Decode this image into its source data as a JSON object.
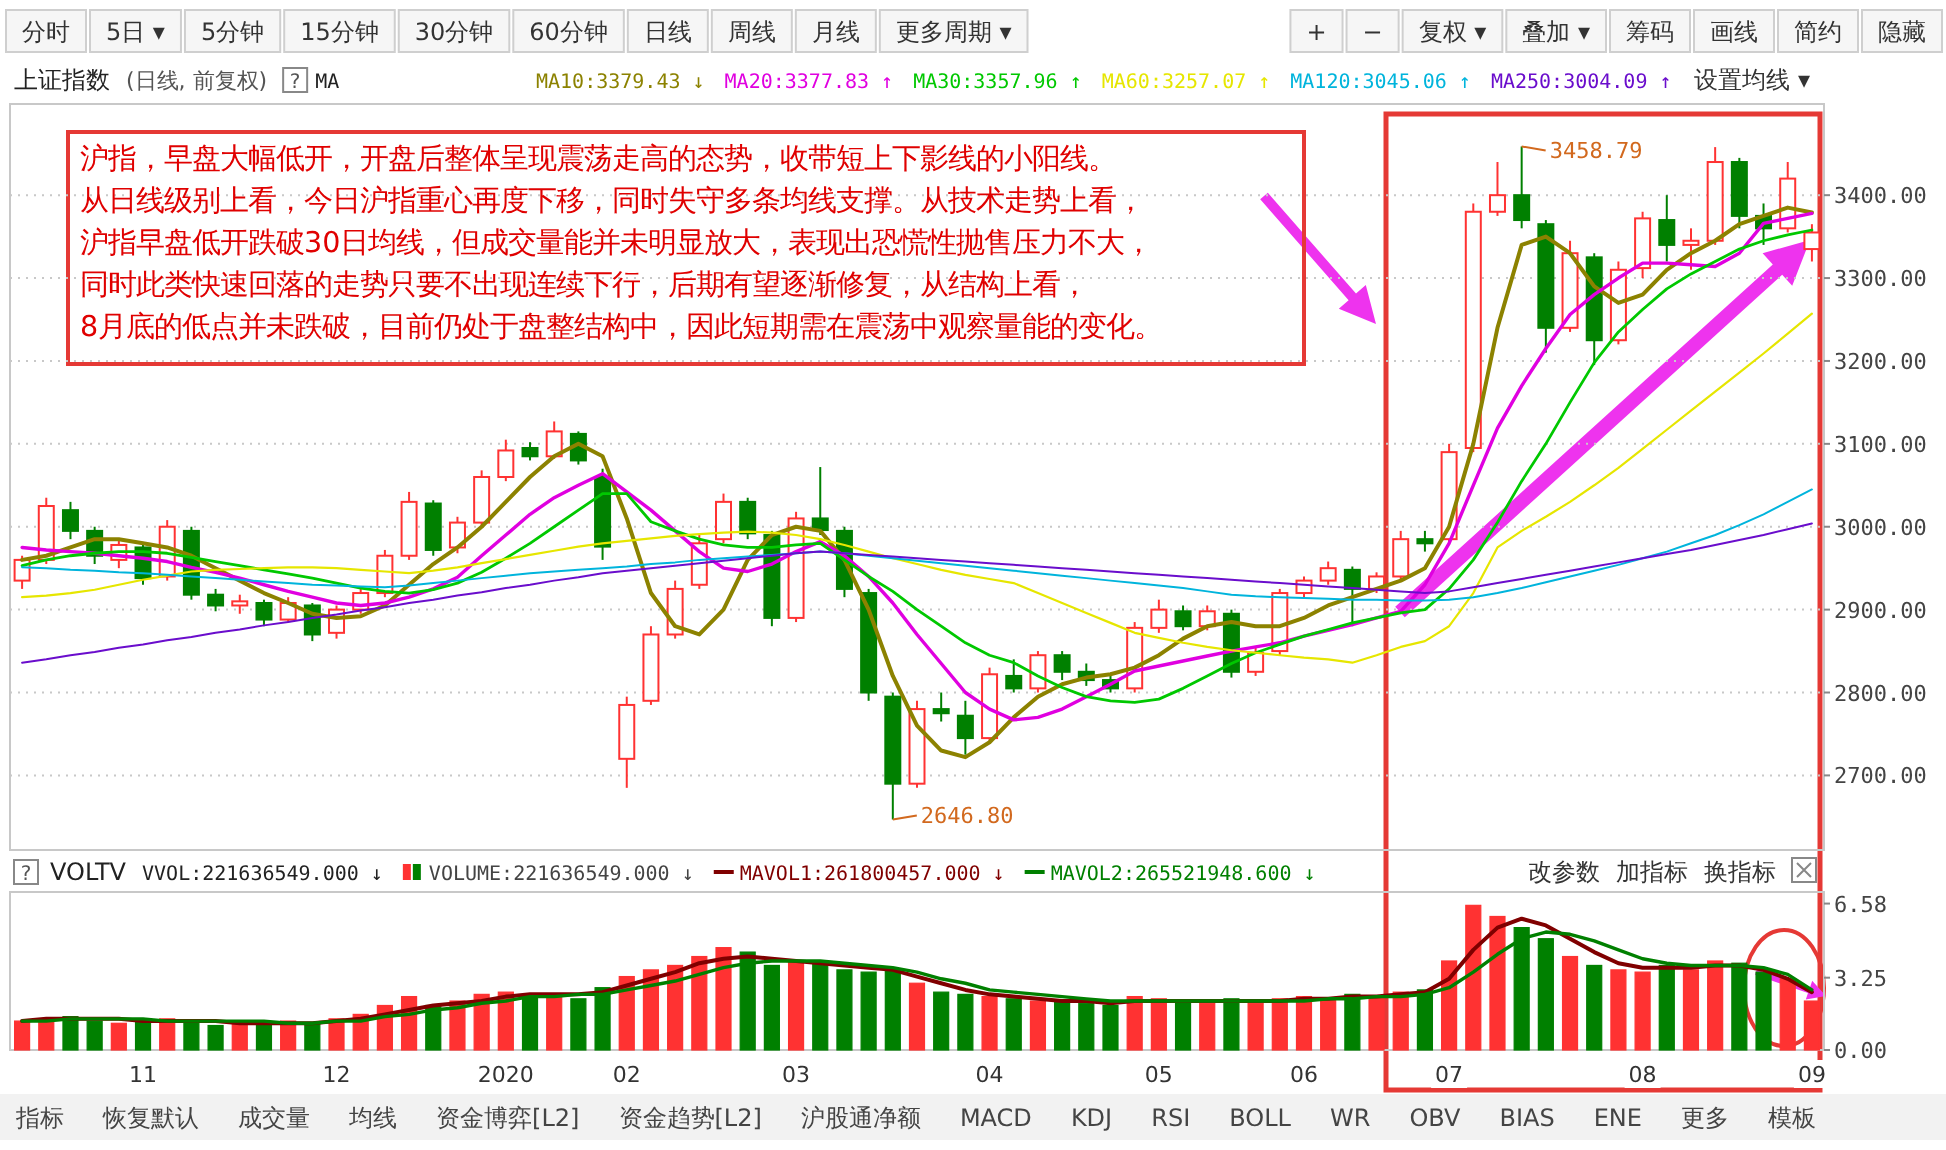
{
  "chart_data": [
    {
      "type": "candlestick",
      "title": "上证指数",
      "subtitle": "(日线, 前复权)",
      "categories": [
        null,
        null,
        null,
        null,
        null,
        null,
        null,
        null,
        null,
        null,
        null,
        null,
        null,
        null,
        null,
        null,
        null,
        null,
        null,
        null,
        null,
        null,
        null,
        null,
        null,
        null,
        null,
        null,
        null,
        null,
        null,
        null,
        null,
        null,
        null,
        null,
        null,
        null,
        null,
        null,
        null,
        null,
        null,
        null,
        null,
        null,
        null,
        null,
        null,
        null,
        null,
        null,
        null,
        null,
        null,
        null,
        null,
        null,
        null,
        null,
        null,
        null,
        null,
        null,
        null,
        null,
        null,
        null,
        null,
        null,
        null,
        null,
        null,
        null,
        null
      ],
      "ohlc": [
        [
          2935,
          2965,
          2925,
          2960
        ],
        [
          2960,
          3035,
          2955,
          3025
        ],
        [
          3020,
          3030,
          2985,
          2995
        ],
        [
          2995,
          3000,
          2955,
          2965
        ],
        [
          2960,
          2985,
          2950,
          2978
        ],
        [
          2975,
          2980,
          2930,
          2938
        ],
        [
          2940,
          3008,
          2935,
          3000
        ],
        [
          2995,
          3000,
          2912,
          2918
        ],
        [
          2918,
          2925,
          2898,
          2905
        ],
        [
          2905,
          2918,
          2895,
          2910
        ],
        [
          2908,
          2912,
          2880,
          2888
        ],
        [
          2888,
          2915,
          2885,
          2908
        ],
        [
          2905,
          2908,
          2862,
          2870
        ],
        [
          2872,
          2905,
          2865,
          2900
        ],
        [
          2900,
          2925,
          2895,
          2920
        ],
        [
          2920,
          2972,
          2915,
          2965
        ],
        [
          2965,
          3042,
          2960,
          3030
        ],
        [
          3028,
          3032,
          2965,
          2972
        ],
        [
          2975,
          3012,
          2968,
          3005
        ],
        [
          3005,
          3068,
          3000,
          3060
        ],
        [
          3060,
          3105,
          3055,
          3092
        ],
        [
          3095,
          3102,
          3080,
          3085
        ],
        [
          3085,
          3127,
          3082,
          3115
        ],
        [
          3112,
          3115,
          3075,
          3080
        ],
        [
          3060,
          3070,
          2960,
          2976
        ],
        [
          2720,
          2795,
          2685,
          2785
        ],
        [
          2790,
          2880,
          2785,
          2870
        ],
        [
          2870,
          2935,
          2865,
          2925
        ],
        [
          2930,
          2990,
          2925,
          2980
        ],
        [
          2985,
          3040,
          2980,
          3030
        ],
        [
          3030,
          3035,
          2985,
          2992
        ],
        [
          2990,
          2995,
          2880,
          2890
        ],
        [
          2890,
          3018,
          2885,
          3010
        ],
        [
          3010,
          3072,
          2990,
          2996
        ],
        [
          2995,
          3000,
          2915,
          2925
        ],
        [
          2920,
          2925,
          2790,
          2800
        ],
        [
          2795,
          2800,
          2646.8,
          2690
        ],
        [
          2690,
          2790,
          2685,
          2780
        ],
        [
          2780,
          2800,
          2765,
          2775
        ],
        [
          2772,
          2790,
          2725,
          2745
        ],
        [
          2745,
          2830,
          2740,
          2822
        ],
        [
          2820,
          2840,
          2800,
          2805
        ],
        [
          2805,
          2850,
          2800,
          2845
        ],
        [
          2845,
          2850,
          2815,
          2825
        ],
        [
          2825,
          2835,
          2808,
          2815
        ],
        [
          2815,
          2822,
          2800,
          2805
        ],
        [
          2805,
          2885,
          2800,
          2878
        ],
        [
          2878,
          2912,
          2872,
          2900
        ],
        [
          2898,
          2905,
          2875,
          2880
        ],
        [
          2880,
          2905,
          2875,
          2898
        ],
        [
          2895,
          2900,
          2818,
          2825
        ],
        [
          2825,
          2855,
          2820,
          2848
        ],
        [
          2850,
          2925,
          2845,
          2920
        ],
        [
          2920,
          2940,
          2915,
          2935
        ],
        [
          2935,
          2958,
          2930,
          2950
        ],
        [
          2948,
          2952,
          2880,
          2925
        ],
        [
          2925,
          2945,
          2920,
          2940
        ],
        [
          2940,
          2995,
          2935,
          2985
        ],
        [
          2985,
          2995,
          2970,
          2980
        ],
        [
          2985,
          3100,
          2980,
          3090
        ],
        [
          3095,
          3390,
          3090,
          3380
        ],
        [
          3380,
          3440,
          3375,
          3400
        ],
        [
          3400,
          3458.79,
          3360,
          3370
        ],
        [
          3365,
          3370,
          3210,
          3240
        ],
        [
          3240,
          3345,
          3235,
          3330
        ],
        [
          3325,
          3330,
          3195,
          3225
        ],
        [
          3225,
          3320,
          3220,
          3310
        ],
        [
          3312,
          3380,
          3300,
          3372
        ],
        [
          3370,
          3400,
          3320,
          3340
        ],
        [
          3340,
          3360,
          3310,
          3345
        ],
        [
          3345,
          3458,
          3340,
          3440
        ],
        [
          3440,
          3445,
          3360,
          3375
        ],
        [
          3375,
          3390,
          3340,
          3360
        ],
        [
          3360,
          3440,
          3355,
          3420
        ],
        [
          3335,
          3365,
          3320,
          3355
        ]
      ],
      "colors": [
        "#ff3232",
        "#ff3232",
        "#008000",
        "#008000",
        "#ff3232",
        "#008000",
        "#ff3232",
        "#008000",
        "#008000",
        "#ff3232",
        "#008000",
        "#ff3232",
        "#008000",
        "#ff3232",
        "#ff3232",
        "#ff3232",
        "#ff3232",
        "#008000",
        "#ff3232",
        "#ff3232",
        "#ff3232",
        "#008000",
        "#ff3232",
        "#008000",
        "#008000",
        "#ff3232",
        "#ff3232",
        "#ff3232",
        "#ff3232",
        "#ff3232",
        "#008000",
        "#008000",
        "#ff3232",
        "#008000",
        "#008000",
        "#008000",
        "#008000",
        "#ff3232",
        "#008000",
        "#008000",
        "#ff3232",
        "#008000",
        "#ff3232",
        "#008000",
        "#008000",
        "#008000",
        "#ff3232",
        "#ff3232",
        "#008000",
        "#ff3232",
        "#008000",
        "#ff3232",
        "#ff3232",
        "#ff3232",
        "#ff3232",
        "#008000",
        "#ff3232",
        "#ff3232",
        "#008000",
        "#ff3232",
        "#ff3232",
        "#ff3232",
        "#008000",
        "#008000",
        "#ff3232",
        "#008000",
        "#ff3232",
        "#ff3232",
        "#008000",
        "#ff3232",
        "#ff3232",
        "#008000",
        "#008000",
        "#ff3232",
        "#ff3232"
      ],
      "series": [
        {
          "type": "line",
          "name": "MA10:3379.43 ↓",
          "color": "#8c8200",
          "values": [
            2960,
            2965,
            2975,
            2985,
            2985,
            2980,
            2975,
            2965,
            2950,
            2935,
            2920,
            2908,
            2895,
            2890,
            2892,
            2905,
            2930,
            2955,
            2975,
            3000,
            3030,
            3060,
            3085,
            3100,
            3085,
            3010,
            2920,
            2880,
            2870,
            2900,
            2960,
            2990,
            3000,
            2995,
            2960,
            2900,
            2820,
            2760,
            2730,
            2722,
            2740,
            2770,
            2795,
            2810,
            2818,
            2822,
            2830,
            2845,
            2865,
            2880,
            2885,
            2880,
            2880,
            2890,
            2905,
            2915,
            2925,
            2935,
            2950,
            3000,
            3100,
            3240,
            3340,
            3350,
            3330,
            3290,
            3270,
            3280,
            3310,
            3330,
            3345,
            3365,
            3375,
            3385,
            3379
          ]
        },
        {
          "type": "line",
          "name": "MA20:3377.83 ↑",
          "color": "#e000e0",
          "values": [
            2975,
            2972,
            2970,
            2968,
            2965,
            2962,
            2958,
            2951,
            2945,
            2938,
            2930,
            2922,
            2915,
            2908,
            2905,
            2908,
            2915,
            2925,
            2939,
            2965,
            2990,
            3015,
            3035,
            3050,
            3064,
            3042,
            3020,
            2995,
            2970,
            2950,
            2946,
            2955,
            2970,
            2982,
            2965,
            2940,
            2908,
            2870,
            2835,
            2800,
            2780,
            2767,
            2770,
            2780,
            2795,
            2810,
            2826,
            2832,
            2838,
            2844,
            2850,
            2855,
            2860,
            2868,
            2875,
            2882,
            2890,
            2898,
            2930,
            2980,
            3050,
            3119,
            3170,
            3215,
            3256,
            3280,
            3300,
            3318,
            3318,
            3316,
            3314,
            3330,
            3366,
            3372,
            3378
          ]
        },
        {
          "type": "line",
          "name": "MA30:3357.96 ↑",
          "color": "#00c800",
          "values": [
            2953,
            2960,
            2965,
            2968,
            2970,
            2970,
            2968,
            2963,
            2958,
            2953,
            2948,
            2943,
            2938,
            2932,
            2926,
            2922,
            2920,
            2924,
            2932,
            2945,
            2962,
            2980,
            3000,
            3020,
            3040,
            3040,
            3006,
            2995,
            2985,
            2978,
            2975,
            2975,
            2978,
            2980,
            2960,
            2940,
            2922,
            2900,
            2880,
            2860,
            2845,
            2836,
            2820,
            2806,
            2795,
            2790,
            2788,
            2792,
            2805,
            2820,
            2835,
            2848,
            2858,
            2868,
            2876,
            2884,
            2890,
            2896,
            2900,
            2925,
            2960,
            3005,
            3055,
            3100,
            3150,
            3198,
            3235,
            3262,
            3287,
            3305,
            3320,
            3335,
            3345,
            3352,
            3358
          ]
        },
        {
          "type": "line",
          "name": "MA60:3257.07 ↑",
          "color": "#e6e600",
          "values": [
            2915,
            2917,
            2920,
            2924,
            2930,
            2936,
            2941,
            2946,
            2948,
            2949,
            2950,
            2951,
            2951,
            2950,
            2948,
            2946,
            2944,
            2947,
            2951,
            2956,
            2961,
            2966,
            2971,
            2976,
            2980,
            2983,
            2986,
            2989,
            2991,
            2993,
            2994,
            2993,
            2990,
            2985,
            2978,
            2970,
            2962,
            2955,
            2948,
            2942,
            2937,
            2932,
            2920,
            2908,
            2896,
            2884,
            2872,
            2866,
            2860,
            2855,
            2851,
            2848,
            2845,
            2842,
            2840,
            2836,
            2845,
            2855,
            2862,
            2880,
            2920,
            2975,
            2995,
            3012,
            3030,
            3050,
            3071,
            3094,
            3117,
            3140,
            3163,
            3186,
            3209,
            3233,
            3257
          ]
        },
        {
          "type": "line",
          "name": "MA120:3045.06 ↑",
          "color": "#00b4dc",
          "values": [
            2951,
            2950,
            2948,
            2947,
            2945,
            2944,
            2942,
            2940,
            2938,
            2936,
            2934,
            2932,
            2930,
            2929,
            2928,
            2927,
            2929,
            2932,
            2935,
            2938,
            2941,
            2944,
            2946,
            2948,
            2950,
            2952,
            2955,
            2957,
            2960,
            2962,
            2964,
            2966,
            2968,
            2970,
            2968,
            2965,
            2962,
            2959,
            2956,
            2953,
            2950,
            2947,
            2944,
            2941,
            2938,
            2935,
            2932,
            2929,
            2926,
            2922,
            2918,
            2916,
            2915,
            2914,
            2913,
            2912,
            2912,
            2911,
            2911,
            2912,
            2915,
            2920,
            2926,
            2933,
            2940,
            2947,
            2954,
            2962,
            2970,
            2980,
            2990,
            3002,
            3015,
            3030,
            3045
          ]
        },
        {
          "type": "line",
          "name": "MA250:3004.09 ↑",
          "color": "#6a0dcc",
          "values": [
            2836,
            2840,
            2845,
            2849,
            2854,
            2858,
            2863,
            2867,
            2872,
            2876,
            2881,
            2885,
            2890,
            2894,
            2899,
            2903,
            2908,
            2912,
            2917,
            2921,
            2926,
            2930,
            2935,
            2939,
            2944,
            2947,
            2950,
            2953,
            2956,
            2959,
            2962,
            2965,
            2968,
            2970,
            2968,
            2966,
            2964,
            2962,
            2960,
            2958,
            2956,
            2954,
            2952,
            2950,
            2948,
            2946,
            2944,
            2942,
            2940,
            2938,
            2936,
            2934,
            2932,
            2930,
            2928,
            2926,
            2924,
            2922,
            2920,
            2922,
            2927,
            2932,
            2937,
            2942,
            2947,
            2952,
            2957,
            2962,
            2967,
            2972,
            2978,
            2984,
            2990,
            2997,
            3004
          ]
        }
      ],
      "ylim": [
        2610,
        3510
      ],
      "yticks": [
        {
          "value": 2700,
          "label": "2700.00"
        },
        {
          "value": 2800,
          "label": "2800.00"
        },
        {
          "value": 2900,
          "label": "2900.00"
        },
        {
          "value": 3000,
          "label": "3000.00"
        },
        {
          "value": 3100,
          "label": "3100.00"
        },
        {
          "value": 3200,
          "label": "3200.00"
        },
        {
          "value": 3300,
          "label": "3300.00"
        },
        {
          "value": 3400,
          "label": "3400.00"
        }
      ],
      "grid": "y",
      "legend": "top",
      "tick_labels": "y",
      "annotations": [
        "沪指，早盘大幅低开，开盘后整体呈现震荡走高的态势，收带短上下影线的小阳线。",
        "从日线级别上看，今日沪指重心再度下移，同时失守多条均线支撑。从技术走势上看，",
        "沪指早盘低开跌破30日均线，但成交量能并未明显放大，表现出恐慌性抛售压力不大，",
        "同时此类快速回落的走势只要不出现连续下行，后期有望逐渐修复，从结构上看，",
        "8月底的低点并未跌破，目前仍处于盘整结构中，因此短期需在震荡中观察量能的变化。",
        "3458.79",
        "2646.80",
        "?",
        "MA",
        "设置均线 ▾",
        "分时",
        "5日 ▾",
        "5分钟",
        "15分钟",
        "30分钟",
        "60分钟",
        "日线",
        "周线",
        "月线",
        "更多周期 ▾",
        "+",
        "−",
        "复权 ▾",
        "叠加 ▾",
        "筹码",
        "画线",
        "简约",
        "隐藏"
      ]
    },
    {
      "type": "bar",
      "title": "VOLTV",
      "categories": [
        null,
        null,
        null,
        null,
        null,
        "11",
        null,
        null,
        null,
        null,
        null,
        null,
        null,
        "12",
        null,
        null,
        null,
        null,
        null,
        null,
        "2020",
        null,
        null,
        null,
        null,
        "02",
        null,
        null,
        null,
        null,
        null,
        null,
        "03",
        null,
        null,
        null,
        null,
        null,
        null,
        null,
        "04",
        null,
        null,
        null,
        null,
        null,
        null,
        "05",
        null,
        null,
        null,
        null,
        null,
        "06",
        null,
        null,
        null,
        null,
        null,
        "07",
        null,
        null,
        null,
        null,
        null,
        null,
        null,
        "08",
        null,
        null,
        null,
        null,
        null,
        null,
        "09"
      ],
      "series": [
        {
          "type": "bar",
          "name": "VOLUME:221636549.000 ↓",
          "colors": [
            "#ff3232",
            "#ff3232",
            "#008000",
            "#008000",
            "#ff3232",
            "#008000",
            "#ff3232",
            "#008000",
            "#008000",
            "#ff3232",
            "#008000",
            "#ff3232",
            "#008000",
            "#ff3232",
            "#ff3232",
            "#ff3232",
            "#ff3232",
            "#008000",
            "#ff3232",
            "#ff3232",
            "#ff3232",
            "#008000",
            "#ff3232",
            "#008000",
            "#008000",
            "#ff3232",
            "#ff3232",
            "#ff3232",
            "#ff3232",
            "#ff3232",
            "#008000",
            "#008000",
            "#ff3232",
            "#008000",
            "#008000",
            "#008000",
            "#008000",
            "#ff3232",
            "#008000",
            "#008000",
            "#ff3232",
            "#008000",
            "#ff3232",
            "#008000",
            "#008000",
            "#008000",
            "#ff3232",
            "#ff3232",
            "#008000",
            "#ff3232",
            "#008000",
            "#ff3232",
            "#ff3232",
            "#ff3232",
            "#ff3232",
            "#008000",
            "#ff3232",
            "#ff3232",
            "#008000",
            "#ff3232",
            "#ff3232",
            "#ff3232",
            "#008000",
            "#008000",
            "#ff3232",
            "#008000",
            "#ff3232",
            "#ff3232",
            "#008000",
            "#ff3232",
            "#ff3232",
            "#008000",
            "#008000",
            "#ff3232",
            "#ff3232"
          ],
          "values": [
            1.3,
            1.4,
            1.5,
            1.3,
            1.2,
            1.3,
            1.4,
            1.3,
            1.1,
            1.2,
            1.1,
            1.3,
            1.2,
            1.4,
            1.6,
            2.0,
            2.4,
            2.0,
            2.2,
            2.5,
            2.6,
            2.4,
            2.5,
            2.3,
            2.8,
            3.3,
            3.6,
            3.8,
            4.2,
            4.6,
            4.4,
            3.8,
            4.0,
            3.9,
            3.6,
            3.5,
            3.6,
            3.0,
            2.6,
            2.5,
            2.4,
            2.3,
            2.2,
            2.2,
            2.1,
            2.0,
            2.4,
            2.3,
            2.2,
            2.1,
            2.3,
            2.1,
            2.3,
            2.4,
            2.3,
            2.5,
            2.4,
            2.6,
            2.7,
            4.0,
            6.5,
            6.0,
            5.5,
            5.0,
            4.2,
            3.8,
            3.6,
            3.5,
            3.8,
            3.6,
            4.0,
            3.9,
            3.5,
            3.2,
            2.2
          ]
        },
        {
          "type": "line",
          "name": "MAVOL1:261800457.000 ↓",
          "color": "#800000",
          "values": [
            1.3,
            1.4,
            1.4,
            1.4,
            1.4,
            1.3,
            1.3,
            1.3,
            1.3,
            1.2,
            1.2,
            1.2,
            1.2,
            1.3,
            1.4,
            1.6,
            1.8,
            2.0,
            2.1,
            2.2,
            2.4,
            2.5,
            2.5,
            2.5,
            2.6,
            2.9,
            3.2,
            3.5,
            3.9,
            4.1,
            4.2,
            4.1,
            4.0,
            3.9,
            3.8,
            3.7,
            3.6,
            3.3,
            3.0,
            2.7,
            2.5,
            2.4,
            2.3,
            2.2,
            2.2,
            2.1,
            2.2,
            2.2,
            2.2,
            2.2,
            2.2,
            2.2,
            2.2,
            2.3,
            2.3,
            2.4,
            2.4,
            2.5,
            2.6,
            3.2,
            4.5,
            5.5,
            5.9,
            5.6,
            5.0,
            4.4,
            3.9,
            3.7,
            3.7,
            3.7,
            3.8,
            3.8,
            3.6,
            3.2,
            2.6
          ]
        },
        {
          "type": "line",
          "name": "MAVOL2:265521948.600 ↓",
          "color": "#008000",
          "values": [
            1.3,
            1.3,
            1.4,
            1.4,
            1.4,
            1.4,
            1.3,
            1.3,
            1.3,
            1.3,
            1.3,
            1.2,
            1.2,
            1.3,
            1.3,
            1.5,
            1.6,
            1.8,
            1.9,
            2.1,
            2.2,
            2.4,
            2.4,
            2.5,
            2.5,
            2.7,
            2.9,
            3.1,
            3.4,
            3.7,
            3.9,
            4.0,
            4.0,
            4.0,
            3.9,
            3.8,
            3.7,
            3.5,
            3.2,
            3.0,
            2.7,
            2.6,
            2.5,
            2.4,
            2.3,
            2.2,
            2.2,
            2.2,
            2.2,
            2.2,
            2.2,
            2.2,
            2.2,
            2.2,
            2.3,
            2.3,
            2.4,
            2.4,
            2.5,
            2.8,
            3.5,
            4.3,
            5.0,
            5.3,
            5.2,
            4.9,
            4.5,
            4.1,
            3.9,
            3.8,
            3.8,
            3.8,
            3.7,
            3.4,
            2.7
          ]
        }
      ],
      "ylim": [
        0,
        7.1
      ],
      "yticks": [
        {
          "value": 0,
          "label": "0.00"
        },
        {
          "value": 3.25,
          "label": "3.25"
        },
        {
          "value": 6.58,
          "label": "6.58"
        }
      ],
      "legend": "top",
      "annotations": [
        "?",
        "VVOL:221636549.000 ↓",
        "改参数",
        "加指标",
        "换指标",
        "指标",
        "恢复默认",
        "成交量",
        "均线",
        "资金博弈[L2]",
        "资金趋势[L2]",
        "沪股通净额",
        "MACD",
        "KDJ",
        "RSI",
        "BOLL",
        "WR",
        "OBV",
        "BIAS",
        "ENE",
        "更多",
        "模板"
      ]
    }
  ]
}
